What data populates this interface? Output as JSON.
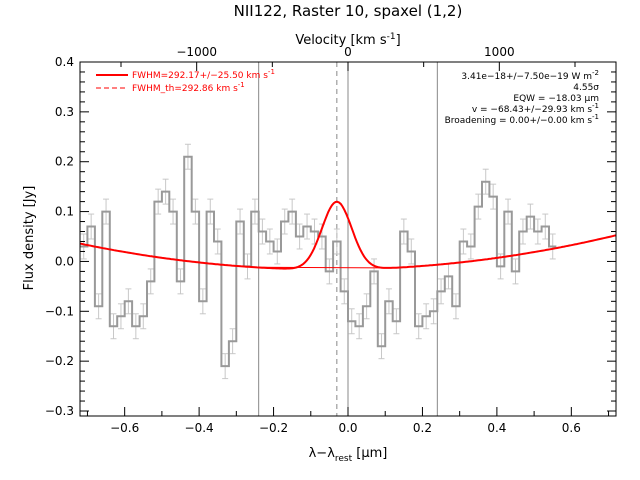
{
  "chart_data": {
    "type": "line",
    "title": "NII122, Raster 10, spaxel (1,2)",
    "xlabel": "λ−λ",
    "xlabel_sub": "rest",
    "xlabel_unit": " [μm]",
    "ylabel": "Flux density [Jy]",
    "top_xlabel": "Velocity [km s",
    "top_xlabel_sup": "-1",
    "top_xlabel_end": "]",
    "xlim": [
      -0.72,
      0.72
    ],
    "ylim": [
      -0.31,
      0.4
    ],
    "top_xlim": [
      -1771,
      1771
    ],
    "x_ticks": [
      -0.6,
      -0.4,
      -0.2,
      0.0,
      0.2,
      0.4,
      0.6
    ],
    "x_tick_labels": [
      "−0.6",
      "−0.4",
      "−0.2",
      "0.0",
      "0.2",
      "0.4",
      "0.6"
    ],
    "y_ticks": [
      -0.3,
      -0.2,
      -0.1,
      0.0,
      0.1,
      0.2,
      0.3,
      0.4
    ],
    "y_tick_labels": [
      "−0.3",
      "−0.2",
      "−0.1",
      "0.0",
      "0.1",
      "0.2",
      "0.3",
      "0.4"
    ],
    "top_ticks": [
      -1000,
      0,
      1000
    ],
    "top_tick_labels": [
      "−1000",
      "0",
      "1000"
    ],
    "vlines_solid": [
      -0.24,
      0.24
    ],
    "vline_dashed": -0.03,
    "spectrum": {
      "x_start": -0.72,
      "bin_width": 0.02,
      "values": [
        0.03,
        0.07,
        -0.09,
        0.1,
        -0.13,
        -0.11,
        -0.08,
        -0.13,
        -0.11,
        -0.04,
        0.12,
        0.14,
        0.1,
        -0.04,
        0.21,
        0.1,
        -0.08,
        0.1,
        0.04,
        -0.21,
        -0.16,
        0.08,
        -0.01,
        0.1,
        0.06,
        0.04,
        0.02,
        0.08,
        0.1,
        0.05,
        0.07,
        0.06,
        0.05,
        -0.02,
        0.04,
        -0.06,
        -0.12,
        -0.13,
        -0.09,
        -0.02,
        -0.17,
        -0.08,
        -0.12,
        0.06,
        0.02,
        -0.13,
        -0.11,
        -0.1,
        -0.06,
        -0.03,
        -0.09,
        0.04,
        0.03,
        0.11,
        0.16,
        0.13,
        -0.01,
        0.1,
        -0.02,
        0.06,
        0.09,
        0.06,
        0.07,
        0.03
      ],
      "error": 0.025,
      "color": "#999999"
    },
    "fit": {
      "baseline_coeffs": [
        -0.016,
        0.0115,
        0.116
      ],
      "amplitude": 0.136,
      "center": -0.03,
      "sigma": 0.04,
      "color": "#ff0000"
    },
    "legend": [
      {
        "label": "FWHM=292.17+/−25.50 km s",
        "sup": "-1",
        "style": "solid"
      },
      {
        "label": "FWHM_th=292.86 km s",
        "sup": "-1",
        "style": "dashed"
      }
    ],
    "annotations": [
      {
        "text": "3.41e−18+/−7.50e−19 W m",
        "sup": "-2"
      },
      {
        "text": "4.55σ",
        "sup": ""
      },
      {
        "text": "EQW = −18.03 μm",
        "sup": ""
      },
      {
        "text": "v = −68.43+/−29.93 km s",
        "sup": "-1"
      },
      {
        "text": "Broadening = 0.00+/−0.00 km s",
        "sup": "-1"
      }
    ]
  }
}
